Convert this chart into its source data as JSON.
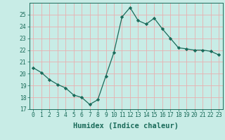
{
  "x": [
    0,
    1,
    2,
    3,
    4,
    5,
    6,
    7,
    8,
    9,
    10,
    11,
    12,
    13,
    14,
    15,
    16,
    17,
    18,
    19,
    20,
    21,
    22,
    23
  ],
  "y": [
    20.5,
    20.1,
    19.5,
    19.1,
    18.8,
    18.2,
    18.0,
    17.4,
    17.8,
    19.8,
    21.8,
    24.8,
    25.6,
    24.5,
    24.2,
    24.7,
    23.8,
    23.0,
    22.2,
    22.1,
    22.0,
    22.0,
    21.9,
    21.6
  ],
  "line_color": "#1a6b5a",
  "marker": "D",
  "marker_size": 2.2,
  "bg_color": "#c8ece6",
  "grid_color": "#e8b0b0",
  "title": "",
  "xlabel": "Humidex (Indice chaleur)",
  "ylabel": "",
  "xlim": [
    -0.5,
    23.5
  ],
  "ylim": [
    17,
    26
  ],
  "yticks": [
    17,
    18,
    19,
    20,
    21,
    22,
    23,
    24,
    25
  ],
  "xtick_labels": [
    "0",
    "1",
    "2",
    "3",
    "4",
    "5",
    "6",
    "7",
    "8",
    "9",
    "10",
    "11",
    "12",
    "13",
    "14",
    "15",
    "16",
    "17",
    "18",
    "19",
    "20",
    "21",
    "22",
    "23"
  ],
  "tick_color": "#1a6b5a",
  "label_fontsize": 7.5,
  "tick_fontsize": 5.8
}
